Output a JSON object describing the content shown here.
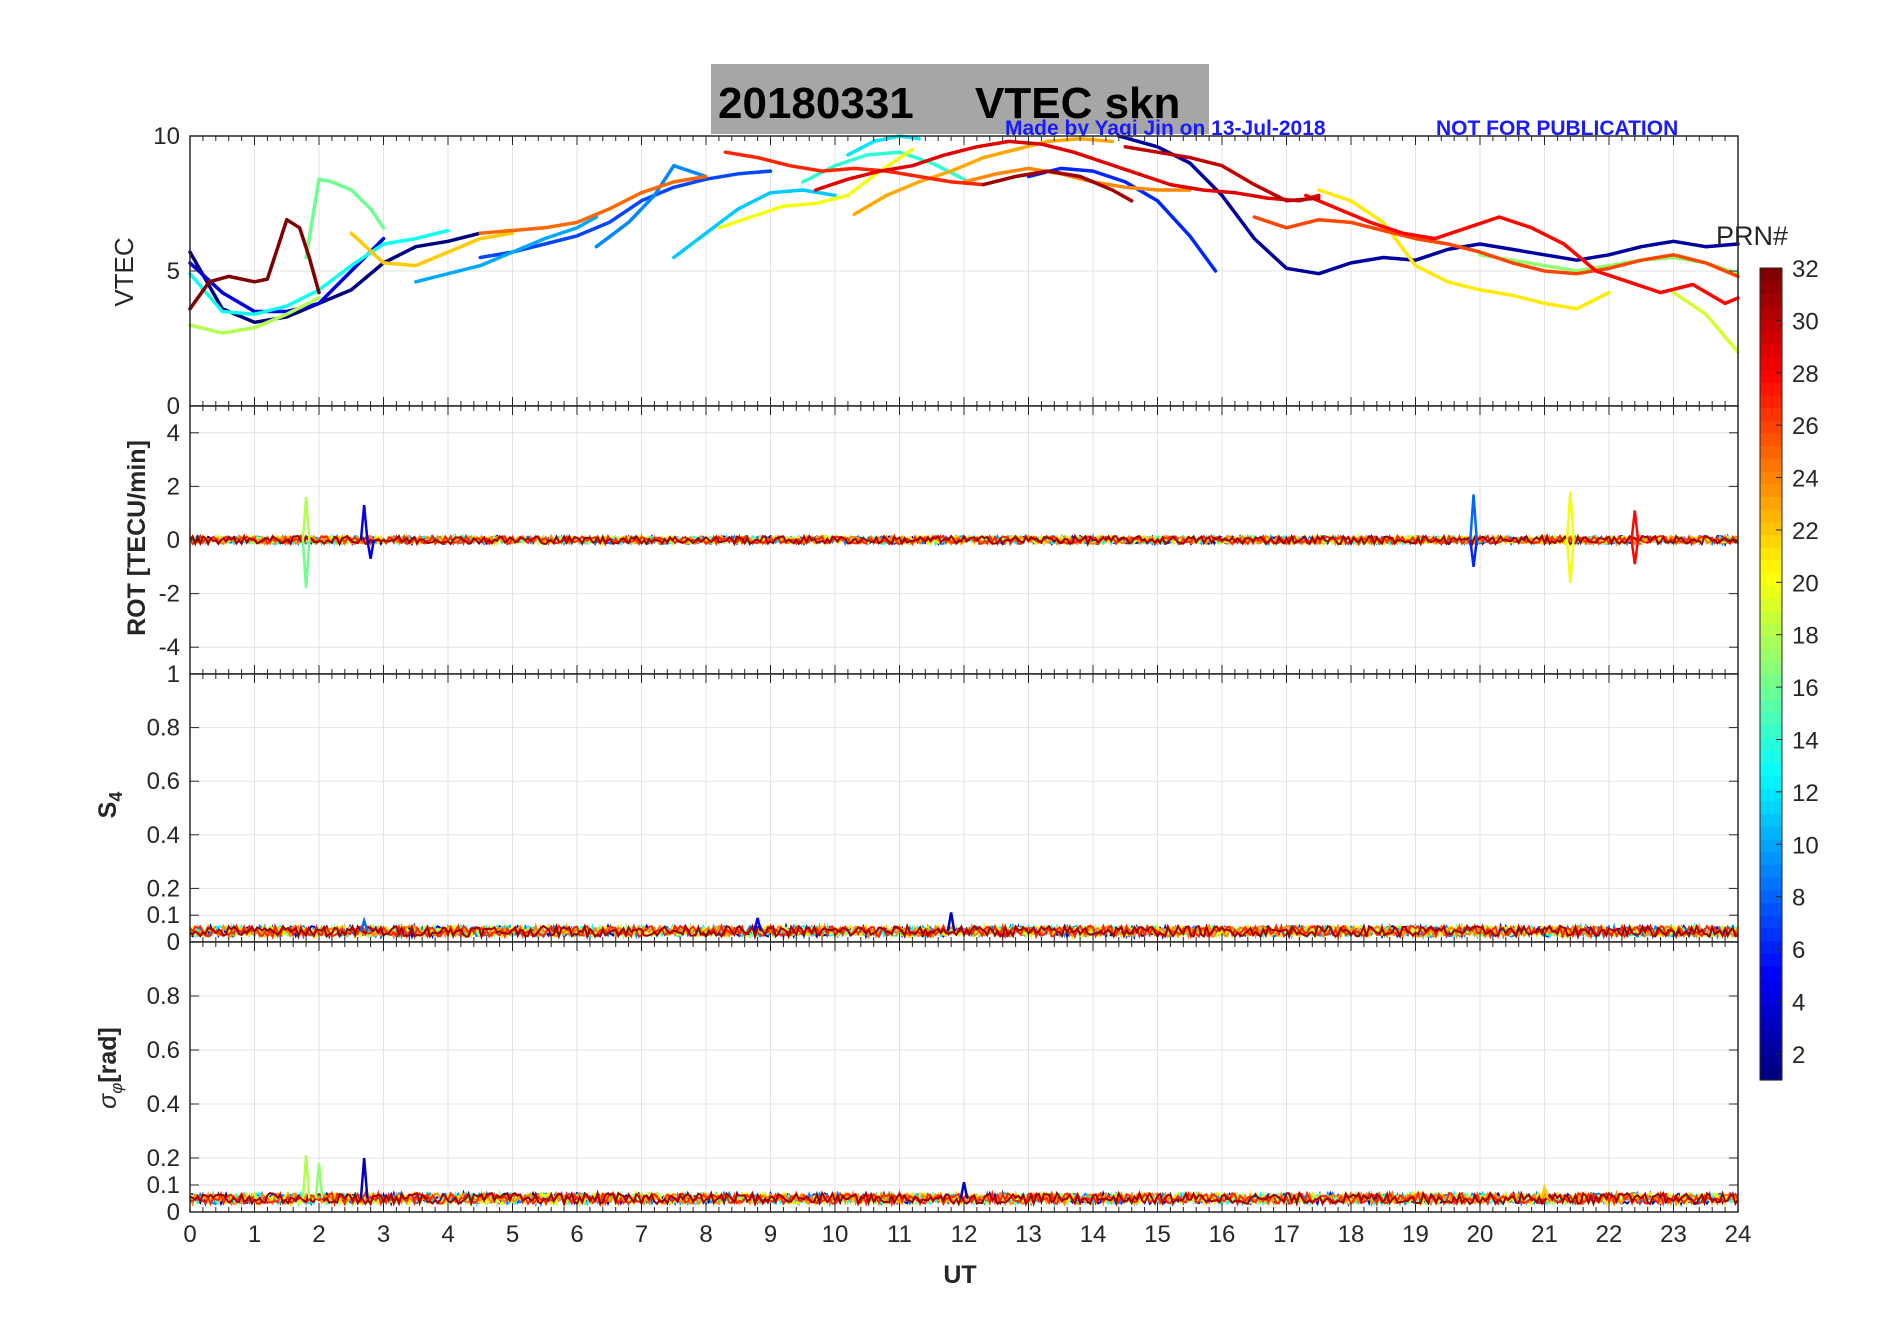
{
  "title": {
    "date": "20180331",
    "label": "VTEC  skn",
    "box_color": "#a6a6a6"
  },
  "credit": {
    "made_by": "Made by Yaqi Jin on 13-Jul-2018",
    "notice": "NOT FOR PUBLICATION",
    "color": "#1a1aff"
  },
  "colorbar": {
    "title": "PRN#",
    "range": [
      1,
      32
    ],
    "tick_labels": [
      "2",
      "4",
      "6",
      "8",
      "10",
      "12",
      "14",
      "16",
      "18",
      "20",
      "22",
      "24",
      "26",
      "28",
      "30",
      "32"
    ],
    "colormap": "jet"
  },
  "chart_data": [
    {
      "type": "line",
      "panel": "vtec",
      "ylabel": "VTEC",
      "ylim": [
        0,
        10
      ],
      "yticks": [
        "0",
        "5",
        "10"
      ],
      "xlim": [
        0,
        24
      ],
      "grid": true,
      "series": [
        {
          "prn": 1,
          "x": [
            0,
            0.5,
            1,
            1.5,
            2,
            2.5,
            3,
            3.5,
            4,
            4.5
          ],
          "y": [
            5.7,
            3.6,
            3.1,
            3.3,
            3.8,
            4.3,
            5.3,
            5.9,
            6.1,
            6.4
          ]
        },
        {
          "prn": 2,
          "x": [
            14.4,
            15,
            15.5,
            16,
            16.5,
            17,
            17.5,
            18,
            18.5,
            19,
            19.5,
            20,
            20.5,
            21,
            21.5,
            22,
            22.5,
            23,
            23.5,
            24
          ],
          "y": [
            10,
            9.6,
            9.0,
            7.8,
            6.2,
            5.1,
            4.9,
            5.3,
            5.5,
            5.4,
            5.8,
            6.0,
            5.8,
            5.6,
            5.4,
            5.6,
            5.9,
            6.1,
            5.9,
            6.0
          ]
        },
        {
          "prn": 4,
          "x": [
            0,
            0.5,
            1,
            1.5,
            2,
            2.5,
            3
          ],
          "y": [
            5.3,
            4.2,
            3.5,
            3.5,
            3.8,
            5.0,
            6.2
          ]
        },
        {
          "prn": 6,
          "x": [
            13,
            13.5,
            14,
            14.5,
            15,
            15.5,
            15.9
          ],
          "y": [
            8.5,
            8.8,
            8.7,
            8.3,
            7.6,
            6.3,
            5.0
          ]
        },
        {
          "prn": 7,
          "x": [
            4.5,
            5,
            5.5,
            6,
            6.5,
            7,
            7.5,
            8,
            8.5,
            9
          ],
          "y": [
            5.5,
            5.7,
            6.0,
            6.3,
            6.8,
            7.6,
            8.1,
            8.4,
            8.6,
            8.7
          ]
        },
        {
          "prn": 9,
          "x": [
            6.3,
            6.8,
            7.2,
            7.5,
            8
          ],
          "y": [
            5.9,
            6.8,
            7.8,
            8.9,
            8.5
          ]
        },
        {
          "prn": 10,
          "x": [
            3.5,
            4,
            4.5,
            5,
            5.5,
            6,
            6.3
          ],
          "y": [
            4.6,
            4.9,
            5.2,
            5.7,
            6.2,
            6.6,
            7.0
          ]
        },
        {
          "prn": 11,
          "x": [
            7.5,
            8,
            8.5,
            9,
            9.5,
            10
          ],
          "y": [
            5.5,
            6.4,
            7.3,
            7.9,
            8.0,
            7.8
          ]
        },
        {
          "prn": 12,
          "x": [
            10.2,
            10.6,
            11,
            11.3
          ],
          "y": [
            9.3,
            9.8,
            10.0,
            9.9
          ]
        },
        {
          "prn": 13,
          "x": [
            0,
            0.5,
            1,
            1.5,
            2,
            2.5,
            3,
            3.5,
            4
          ],
          "y": [
            4.9,
            3.5,
            3.4,
            3.7,
            4.3,
            5.2,
            6.0,
            6.2,
            6.5
          ]
        },
        {
          "prn": 14,
          "x": [
            9.5,
            10,
            10.5,
            11,
            11.5,
            12
          ],
          "y": [
            8.3,
            8.9,
            9.3,
            9.4,
            9.0,
            8.4
          ]
        },
        {
          "prn": 16,
          "x": [
            1.8,
            2,
            2.2,
            2.5,
            2.8,
            3
          ],
          "y": [
            5.5,
            8.4,
            8.3,
            8.0,
            7.3,
            6.6
          ]
        },
        {
          "prn": 17,
          "x": [
            20,
            20.5,
            21,
            21.5,
            22,
            22.5,
            23,
            23.5,
            24
          ],
          "y": [
            5.6,
            5.4,
            5.2,
            5.0,
            5.2,
            5.4,
            5.5,
            5.3,
            4.9
          ]
        },
        {
          "prn": 18,
          "x": [
            0,
            0.5,
            1,
            1.5,
            2
          ],
          "y": [
            3.0,
            2.7,
            2.9,
            3.4,
            4.0
          ]
        },
        {
          "prn": 19,
          "x": [
            23,
            23.5,
            24
          ],
          "y": [
            4.2,
            3.4,
            2.0
          ]
        },
        {
          "prn": 20,
          "x": [
            8.2,
            8.7,
            9.2,
            9.7,
            10.2,
            10.7,
            11.2
          ],
          "y": [
            6.6,
            7.0,
            7.4,
            7.5,
            7.8,
            8.7,
            9.5
          ]
        },
        {
          "prn": 21,
          "x": [
            17.5,
            18,
            18.5,
            19,
            19.5,
            20,
            20.5,
            21,
            21.5,
            22
          ],
          "y": [
            8.0,
            7.6,
            6.8,
            5.2,
            4.6,
            4.3,
            4.1,
            3.8,
            3.6,
            4.2
          ]
        },
        {
          "prn": 22,
          "x": [
            2.5,
            3,
            3.5,
            4,
            4.5,
            5
          ],
          "y": [
            6.4,
            5.3,
            5.2,
            5.7,
            6.2,
            6.4
          ]
        },
        {
          "prn": 23,
          "x": [
            10.3,
            10.8,
            11.3,
            11.8,
            12.3,
            12.8,
            13.3,
            13.8,
            14.3
          ],
          "y": [
            7.1,
            7.8,
            8.3,
            8.7,
            9.2,
            9.5,
            9.8,
            9.9,
            9.8
          ]
        },
        {
          "prn": 24,
          "x": [
            12,
            12.5,
            13,
            13.5,
            14,
            14.5,
            15,
            15.5
          ],
          "y": [
            8.3,
            8.6,
            8.8,
            8.6,
            8.3,
            8.1,
            8.0,
            8.0
          ]
        },
        {
          "prn": 25,
          "x": [
            4.5,
            5,
            5.5,
            6,
            6.5,
            7,
            7.5,
            8
          ],
          "y": [
            6.4,
            6.5,
            6.6,
            6.8,
            7.3,
            7.9,
            8.3,
            8.5
          ]
        },
        {
          "prn": 26,
          "x": [
            16.5,
            17,
            17.5,
            18,
            18.5,
            19,
            19.5,
            20,
            20.5,
            21,
            21.5,
            22,
            22.5,
            23,
            23.5,
            24
          ],
          "y": [
            7.0,
            6.6,
            6.9,
            6.8,
            6.5,
            6.2,
            6.0,
            5.7,
            5.3,
            5.0,
            4.9,
            5.1,
            5.4,
            5.6,
            5.3,
            4.8
          ]
        },
        {
          "prn": 27,
          "x": [
            8.3,
            8.8,
            9.3,
            9.8,
            10.3,
            10.8,
            11.3,
            11.8,
            12.3
          ],
          "y": [
            9.4,
            9.2,
            8.9,
            8.7,
            8.8,
            8.7,
            8.5,
            8.3,
            8.2
          ]
        },
        {
          "prn": 28,
          "x": [
            17.3,
            17.8,
            18.3,
            18.8,
            19.3,
            19.8,
            20.3,
            20.8,
            21.3,
            21.8,
            22.3,
            22.8,
            23.3,
            23.8,
            24
          ],
          "y": [
            7.8,
            7.3,
            6.8,
            6.4,
            6.2,
            6.6,
            7.0,
            6.6,
            6.0,
            5.0,
            4.6,
            4.2,
            4.5,
            3.8,
            4.0
          ]
        },
        {
          "prn": 29,
          "x": [
            9.7,
            10.2,
            10.7,
            11.2,
            11.7,
            12.2,
            12.7,
            13.2,
            13.7,
            14.2,
            14.7,
            15.2,
            15.7,
            16.2,
            16.7,
            17.2,
            17.5
          ],
          "y": [
            8.0,
            8.4,
            8.7,
            8.9,
            9.3,
            9.6,
            9.8,
            9.7,
            9.4,
            9.0,
            8.6,
            8.2,
            8.0,
            7.9,
            7.7,
            7.6,
            7.8
          ]
        },
        {
          "prn": 30,
          "x": [
            14.5,
            15,
            15.5,
            16,
            16.5,
            17,
            17.5
          ],
          "y": [
            9.6,
            9.4,
            9.2,
            8.9,
            8.2,
            7.6,
            7.7
          ]
        },
        {
          "prn": 31,
          "x": [
            12.3,
            12.8,
            13.3,
            13.8,
            14.3,
            14.6
          ],
          "y": [
            8.2,
            8.5,
            8.7,
            8.5,
            8.0,
            7.6
          ]
        },
        {
          "prn": 32,
          "x": [
            0,
            0.3,
            0.6,
            1,
            1.2,
            1.5,
            1.7,
            1.85,
            2
          ],
          "y": [
            3.6,
            4.6,
            4.8,
            4.6,
            4.7,
            6.9,
            6.6,
            5.5,
            4.2
          ]
        }
      ]
    },
    {
      "type": "line",
      "panel": "rot",
      "ylabel": "ROT [TECU/min]",
      "ylim": [
        -5,
        5
      ],
      "yticks": [
        "-4",
        "-2",
        "0",
        "2",
        "4"
      ],
      "xlim": [
        0,
        24
      ],
      "grid": true,
      "baseline": 0,
      "noise_amplitude": 0.15,
      "spikes": [
        {
          "x": 1.8,
          "y": 1.6,
          "prn": 18
        },
        {
          "x": 1.8,
          "y": -1.8,
          "prn": 16
        },
        {
          "x": 2.7,
          "y": 1.3,
          "prn": 4
        },
        {
          "x": 2.8,
          "y": -0.7,
          "prn": 4
        },
        {
          "x": 19.9,
          "y": 1.7,
          "prn": 8
        },
        {
          "x": 19.9,
          "y": -1.0,
          "prn": 6
        },
        {
          "x": 21.4,
          "y": 1.8,
          "prn": 20
        },
        {
          "x": 21.4,
          "y": -1.6,
          "prn": 20
        },
        {
          "x": 22.4,
          "y": 1.1,
          "prn": 28
        },
        {
          "x": 22.4,
          "y": -0.9,
          "prn": 28
        }
      ]
    },
    {
      "type": "line",
      "panel": "s4",
      "ylabel": "S4",
      "ylim": [
        0,
        1
      ],
      "yticks": [
        "0",
        "0.1",
        "0.2",
        "0.4",
        "0.6",
        "0.8",
        "1"
      ],
      "xlim": [
        0,
        24
      ],
      "grid": true,
      "baseline": 0.04,
      "noise_amplitude": 0.02,
      "spikes": [
        {
          "x": 11.8,
          "y": 0.11,
          "prn": 3
        },
        {
          "x": 8.8,
          "y": 0.09,
          "prn": 5
        },
        {
          "x": 2.7,
          "y": 0.08,
          "prn": 8
        }
      ]
    },
    {
      "type": "line",
      "panel": "sigma_phi",
      "ylabel": "[rad]",
      "ylim": [
        0,
        1
      ],
      "yticks": [
        "0",
        "0.1",
        "0.2",
        "0.4",
        "0.6",
        "0.8"
      ],
      "xlim": [
        0,
        24
      ],
      "xticks": [
        "0",
        "1",
        "2",
        "3",
        "4",
        "5",
        "6",
        "7",
        "8",
        "9",
        "10",
        "11",
        "12",
        "13",
        "14",
        "15",
        "16",
        "17",
        "18",
        "19",
        "20",
        "21",
        "22",
        "23",
        "24"
      ],
      "xlabel": "UT",
      "grid": true,
      "baseline": 0.05,
      "noise_amplitude": 0.02,
      "spikes": [
        {
          "x": 1.8,
          "y": 0.21,
          "prn": 18
        },
        {
          "x": 2.0,
          "y": 0.18,
          "prn": 17
        },
        {
          "x": 2.7,
          "y": 0.2,
          "prn": 3
        },
        {
          "x": 12.0,
          "y": 0.11,
          "prn": 3
        },
        {
          "x": 21.0,
          "y": 0.09,
          "prn": 22
        }
      ]
    }
  ]
}
